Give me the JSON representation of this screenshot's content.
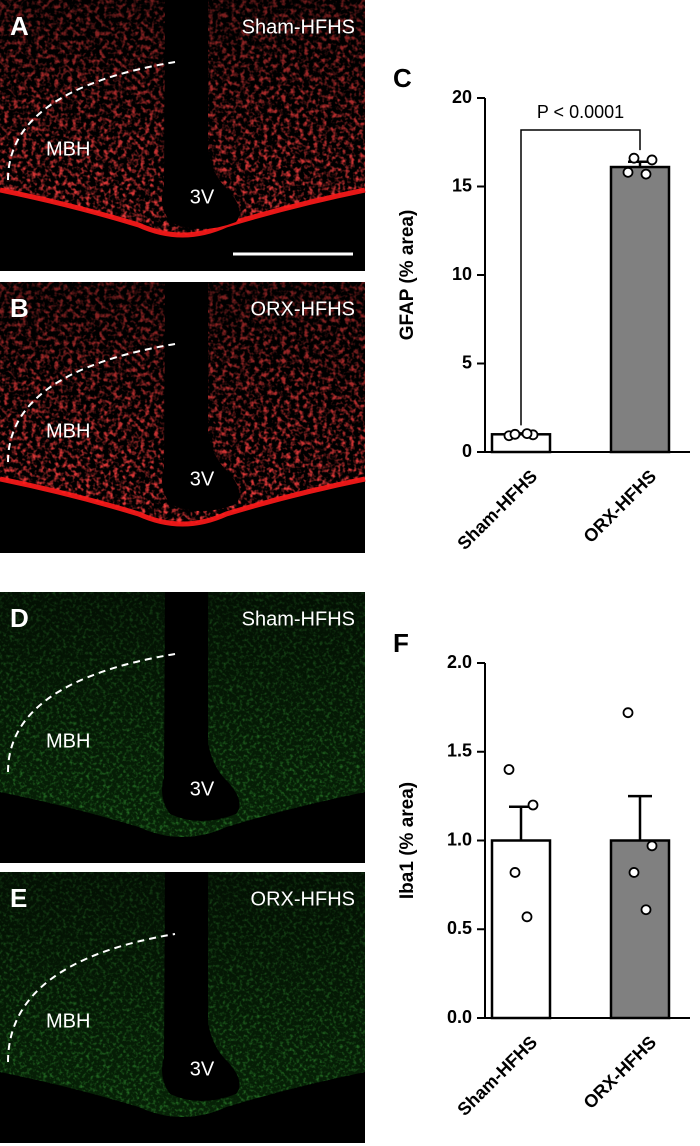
{
  "images": [
    {
      "letter": "A",
      "label": "Sham-HFHS",
      "region": "MBH",
      "ventricle": "3V",
      "color": "red"
    },
    {
      "letter": "B",
      "label": "ORX-HFHS",
      "region": "MBH",
      "ventricle": "3V",
      "color": "red"
    },
    {
      "letter": "D",
      "label": "Sham-HFHS",
      "region": "MBH",
      "ventricle": "3V",
      "color": "green"
    },
    {
      "letter": "E",
      "label": "ORX-HFHS",
      "region": "MBH",
      "ventricle": "3V",
      "color": "green"
    }
  ],
  "chart_data": [
    {
      "type": "bar",
      "panel": "C",
      "y_label": "GFAP (% area)",
      "categories": [
        "Sham-HFHS",
        "ORX-HFHS"
      ],
      "values": [
        1.0,
        16.1
      ],
      "errors": [
        0.05,
        0.3
      ],
      "points": [
        [
          0.92,
          0.97,
          1.0,
          1.04
        ],
        [
          15.8,
          16.5,
          16.6,
          15.7
        ]
      ],
      "colors": [
        "#ffffff",
        "#808080"
      ],
      "annotation": "P < 0.0001",
      "ylim": [
        0,
        20
      ],
      "yticks": [
        0,
        5,
        10,
        15,
        20
      ]
    },
    {
      "type": "bar",
      "panel": "F",
      "y_label": "Iba1 (% area)",
      "categories": [
        "Sham-HFHS",
        "ORX-HFHS"
      ],
      "values": [
        1.0,
        1.0
      ],
      "errors": [
        0.19,
        0.25
      ],
      "points": [
        [
          1.4,
          1.2,
          0.82,
          0.57
        ],
        [
          1.72,
          0.97,
          0.82,
          0.61
        ]
      ],
      "colors": [
        "#ffffff",
        "#808080"
      ],
      "ylim": [
        0,
        2
      ],
      "yticks": [
        {
          "value": 0,
          "label": "0.0"
        },
        {
          "value": 0.5,
          "label": "0.5"
        },
        {
          "value": 1,
          "label": "1.0"
        },
        {
          "value": 1.5,
          "label": "1.5"
        },
        {
          "value": 2,
          "label": "2.0"
        }
      ]
    }
  ]
}
